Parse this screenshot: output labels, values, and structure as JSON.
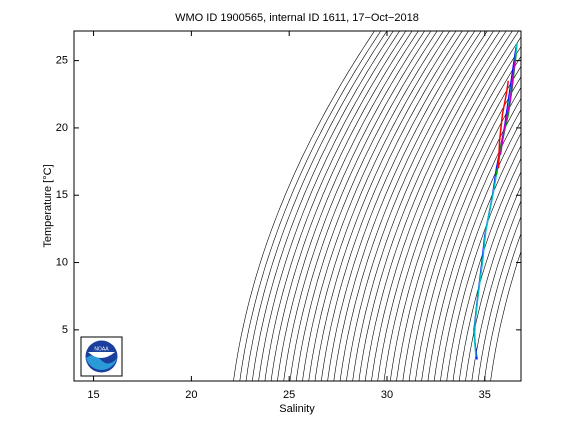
{
  "chart_data": {
    "type": "ts-diagram",
    "title": "WMO ID 1900565, internal ID 1611, 17−Oct−2018",
    "xlabel": "Salinity",
    "ylabel": "Temperature [°C]",
    "xlim": [
      14,
      36.85
    ],
    "ylim": [
      1.2,
      27.2
    ],
    "xticks": [
      15,
      20,
      25,
      30,
      35
    ],
    "yticks": [
      5,
      10,
      15,
      20,
      25
    ],
    "contour_color": "#000000",
    "contour_levels": [
      18,
      18.25,
      18.5,
      18.75,
      19,
      19.25,
      19.5,
      19.75,
      20,
      20.25,
      20.5,
      20.75,
      21,
      21.25,
      21.5,
      21.75,
      22,
      22.25,
      22.5,
      22.75,
      23,
      23.25,
      23.5,
      23.75,
      24,
      24.25,
      24.5,
      24.75,
      25,
      25.25,
      25.5,
      25.75,
      26,
      26.25,
      26.5,
      26.75,
      27,
      27.25,
      27.5,
      27.75,
      28,
      28.25
    ],
    "logo_text": "NOAA",
    "series": [
      {
        "color": "#0000ff",
        "x": [
          34.6,
          34.5,
          34.45,
          34.6,
          34.85,
          35.0,
          35.4,
          35.6,
          36.0,
          36.2,
          36.4,
          36.6
        ],
        "values": [
          2.8,
          4,
          5,
          7,
          10,
          12,
          15,
          17,
          20,
          22,
          24,
          26
        ]
      },
      {
        "color": "#00bfbf",
        "x": [
          34.55,
          34.48,
          34.5,
          34.65,
          34.9,
          35.05,
          35.45,
          35.7,
          36.1,
          36.3,
          36.5,
          36.65
        ],
        "values": [
          3,
          4.2,
          5.5,
          7.5,
          10.3,
          12.4,
          15.3,
          17.5,
          20.5,
          22.5,
          24.5,
          26.3
        ]
      },
      {
        "color": "#00a000",
        "x": [
          35.6,
          35.8,
          36.2,
          36.4,
          36.6
        ],
        "values": [
          16.5,
          18.5,
          21,
          23,
          25.5
        ]
      },
      {
        "color": "#ff0000",
        "x": [
          35.7,
          35.75,
          35.9,
          36.1,
          36.2
        ],
        "values": [
          17,
          19,
          21,
          22.5,
          23.5
        ]
      },
      {
        "color": "#bf00bf",
        "x": [
          35.8,
          36.0,
          36.3,
          36.45,
          36.55
        ],
        "values": [
          18,
          20,
          22,
          24,
          25
        ]
      }
    ]
  }
}
